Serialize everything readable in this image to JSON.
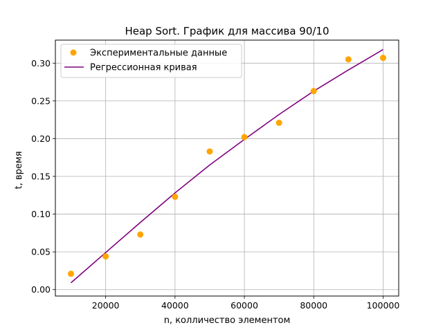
{
  "chart_data": {
    "type": "scatter",
    "title": "Heap Sort. График для массива 90/10",
    "xlabel": "n, колличество элементом",
    "ylabel": "t, время",
    "xlim": [
      5500,
      104500
    ],
    "ylim": [
      -0.0085,
      0.3305
    ],
    "xticks": [
      20000,
      40000,
      60000,
      80000,
      100000
    ],
    "xtick_labels": [
      "20000",
      "40000",
      "60000",
      "80000",
      "100000"
    ],
    "yticks": [
      0.0,
      0.05,
      0.1,
      0.15,
      0.2,
      0.25,
      0.3
    ],
    "ytick_labels": [
      "0.00",
      "0.05",
      "0.10",
      "0.15",
      "0.20",
      "0.25",
      "0.30"
    ],
    "grid": true,
    "legend_position": "top-left",
    "series": [
      {
        "name": "Экспериментальные данные",
        "kind": "scatter",
        "color": "#ffa500",
        "x": [
          10000,
          20000,
          30000,
          40000,
          50000,
          60000,
          70000,
          80000,
          90000,
          100000
        ],
        "y": [
          0.021,
          0.044,
          0.073,
          0.123,
          0.183,
          0.202,
          0.221,
          0.263,
          0.305,
          0.307
        ]
      },
      {
        "name": "Регрессионная кривая",
        "kind": "line",
        "color": "#800080",
        "x": [
          10000,
          20000,
          30000,
          40000,
          50000,
          60000,
          70000,
          80000,
          90000,
          100000
        ],
        "y": [
          0.009,
          0.049,
          0.089,
          0.128,
          0.165,
          0.199,
          0.232,
          0.263,
          0.291,
          0.318
        ]
      }
    ]
  }
}
